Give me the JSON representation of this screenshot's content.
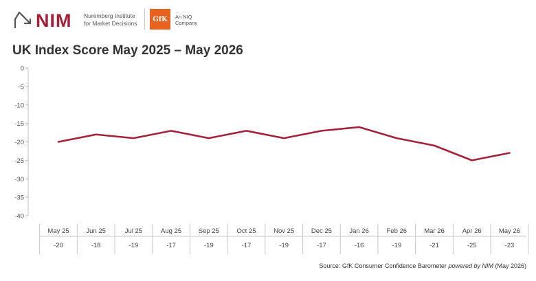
{
  "header": {
    "nim_logo": "NIM",
    "nim_line1": "Nuremberg Institute",
    "nim_line2": "for Market Decisions",
    "gfk_logo": "GfK",
    "gfk_line1": "An NIQ",
    "gfk_line2": "Company"
  },
  "source": {
    "prefix": "Source: GfK Consumer Confidence Barometer ",
    "italic": "powered by NIM",
    "suffix": " (May 2026)"
  },
  "chart_data": {
    "type": "line",
    "title": "UK Index Score May 2025 – May 2026",
    "categories": [
      "May 25",
      "Jun 25",
      "Jul 25",
      "Aug 25",
      "Sep 25",
      "Oct 25",
      "Nov 25",
      "Dec 25",
      "Jan 26",
      "Feb 26",
      "Mar 26",
      "Apr 26",
      "May 26"
    ],
    "series": [
      {
        "values": [
          -20,
          -18,
          -19,
          -17,
          -19,
          -17,
          -19,
          -17,
          -16,
          -19,
          -21,
          -25,
          -23
        ]
      }
    ],
    "table_labels": [
      "-20",
      "-18",
      "-19",
      "-17",
      "-19",
      "-17",
      "-19",
      "-17",
      "-16",
      "-19",
      "-21",
      "-25",
      "-23"
    ],
    "yticks": [
      "0",
      "-5",
      "-10",
      "-15",
      "-20",
      "-25",
      "-30",
      "-35",
      "-40"
    ],
    "ylim": [
      -40,
      0
    ],
    "grid": false,
    "line_color": "#a3223a"
  }
}
